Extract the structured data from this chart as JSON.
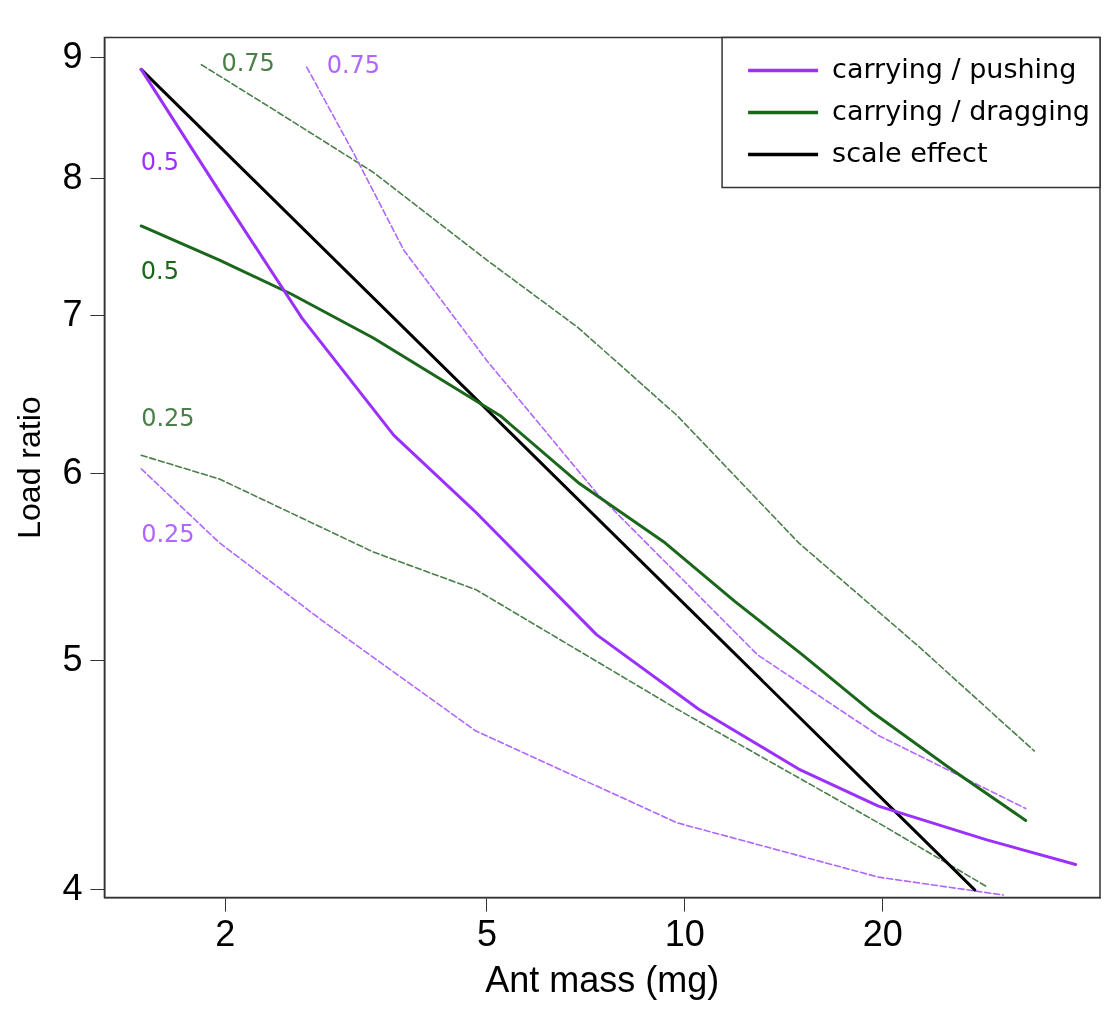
{
  "chart_data": {
    "type": "line",
    "xlabel": "Ant mass (mg)",
    "ylabel": "Load ratio",
    "log": "xy",
    "marker": "none",
    "legend": "top right",
    "grid": false,
    "xlim": [
      1.31,
      42.8
    ],
    "xticks": [
      2,
      5,
      10,
      20
    ],
    "ylim": [
      3.97,
      9.18
    ],
    "yticks": [
      4,
      5,
      6,
      7,
      8,
      9
    ],
    "series": [
      {
        "name": "carrying / pushing",
        "color": "#9b30ff",
        "line_style": "solid",
        "x": [
          1.49,
          1.96,
          2.62,
          3.61,
          4.81,
          7.34,
          10.5,
          14.9,
          19.7,
          28.8,
          39.3
        ],
        "values": [
          8.9,
          7.9,
          6.98,
          6.23,
          5.78,
          5.13,
          4.77,
          4.5,
          4.34,
          4.2,
          4.1
        ]
      },
      {
        "name": "carrying / dragging",
        "color": "#1a661a",
        "line_style": "solid",
        "x": [
          1.49,
          1.96,
          2.52,
          3.36,
          5.24,
          6.88,
          9.33,
          11.9,
          15.1,
          19.4,
          25.4,
          33.0
        ],
        "values": [
          7.64,
          7.39,
          7.15,
          6.85,
          6.35,
          5.95,
          5.61,
          5.3,
          5.03,
          4.75,
          4.5,
          4.28
        ]
      },
      {
        "name": "scale effect",
        "color": "#000000",
        "line_style": "solid",
        "x": [
          1.49,
          27.6
        ],
        "values": [
          8.9,
          4.0
        ]
      },
      {
        "name": "0.75",
        "color": "#b066ff",
        "line_style": "dashed",
        "x": [
          2.66,
          3.13,
          3.74,
          5.0,
          7.34,
          12.9,
          19.7,
          33.0
        ],
        "values": [
          8.92,
          8.21,
          7.46,
          6.7,
          5.89,
          5.03,
          4.65,
          4.33
        ]
      },
      {
        "name": "0.25",
        "color": "#b066ff",
        "line_style": "dashed",
        "x": [
          1.49,
          1.96,
          2.81,
          4.81,
          9.74,
          19.7,
          30.5
        ],
        "values": [
          6.03,
          5.61,
          5.2,
          4.67,
          4.27,
          4.05,
          3.98
        ]
      },
      {
        "name": "0.75",
        "color": "#4a7f4a",
        "line_style": "dashed",
        "x": [
          1.84,
          2.35,
          3.36,
          5.0,
          6.88,
          9.74,
          14.9,
          22.7,
          34.0
        ],
        "values": [
          8.94,
          8.57,
          8.05,
          7.39,
          6.92,
          6.35,
          5.61,
          5.07,
          4.58
        ]
      },
      {
        "name": "0.25",
        "color": "#4a7f4a",
        "line_style": "dashed",
        "x": [
          1.49,
          1.96,
          3.36,
          4.81,
          9.74,
          19.7,
          28.9
        ],
        "values": [
          6.11,
          5.97,
          5.56,
          5.36,
          4.77,
          4.27,
          4.01
        ]
      }
    ],
    "annotations": [
      {
        "text": "0.5",
        "x": 1.73,
        "y": 8.34
      },
      {
        "text": "0.5",
        "x": 1.73,
        "y": 7.5
      }
    ]
  }
}
